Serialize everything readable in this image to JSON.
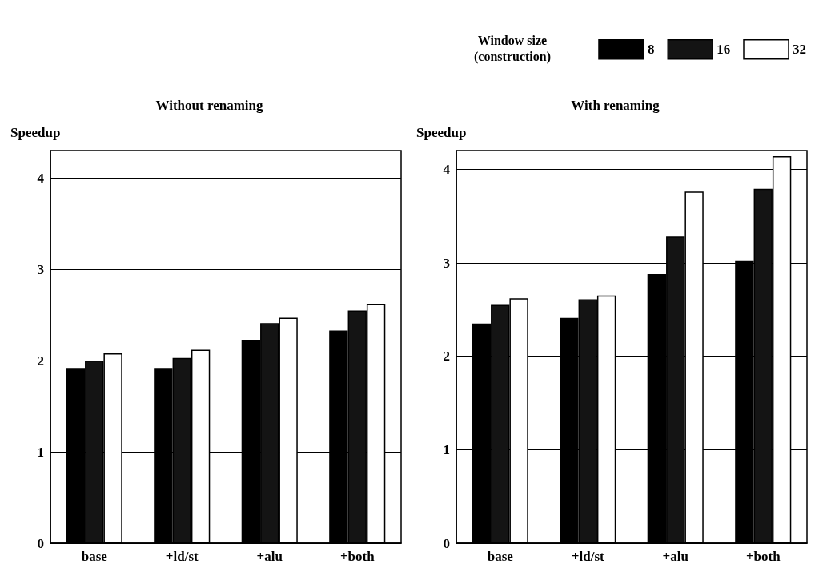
{
  "chart_data": [
    {
      "type": "bar",
      "title": "Without renaming",
      "ylabel": "Speedup",
      "categories": [
        "base",
        "+ld/st",
        "+alu",
        "+both"
      ],
      "series": [
        {
          "color": "#000000",
          "values": [
            1.92,
            1.92,
            2.23,
            2.33
          ]
        },
        {
          "color": "#141414",
          "values": [
            2.0,
            2.03,
            2.41,
            2.55
          ]
        },
        {
          "color": "#ffffff",
          "values": [
            2.08,
            2.12,
            2.47,
            2.62
          ]
        }
      ],
      "ylim": [
        0,
        4.3
      ],
      "yticks": [
        0,
        1,
        2,
        3,
        4
      ],
      "grid": "y",
      "legend": false
    },
    {
      "type": "bar",
      "title": "With renaming",
      "ylabel": "Speedup",
      "legend_title": "Window size\n(construction)",
      "categories": [
        "base",
        "+ld/st",
        "+alu",
        "+both"
      ],
      "series": [
        {
          "name": "8",
          "color": "#000000",
          "values": [
            2.35,
            2.41,
            2.88,
            3.02
          ]
        },
        {
          "name": "16",
          "color": "#141414",
          "values": [
            2.55,
            2.61,
            3.28,
            3.79
          ]
        },
        {
          "name": "32",
          "color": "#ffffff",
          "values": [
            2.62,
            2.65,
            3.76,
            4.14
          ]
        }
      ],
      "ylim": [
        0,
        4.2
      ],
      "yticks": [
        0,
        1,
        2,
        3,
        4
      ],
      "grid": "y",
      "legend": "top right"
    }
  ]
}
